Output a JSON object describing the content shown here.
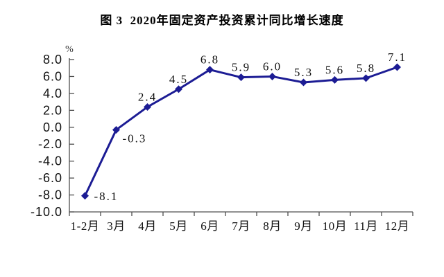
{
  "title": "图 3  2020年固定资产投资累计同比增长速度",
  "chart_data": {
    "type": "line",
    "title": "图 3  2020年固定资产投资累计同比增长速度",
    "categories": [
      "1-2月",
      "3月",
      "4月",
      "5月",
      "6月",
      "7月",
      "8月",
      "9月",
      "10月",
      "11月",
      "12月"
    ],
    "values": [
      -8.1,
      -0.3,
      2.4,
      4.5,
      6.8,
      5.9,
      6.0,
      5.3,
      5.6,
      5.8,
      7.1
    ],
    "data_labels": [
      "-8.1",
      "-0.3",
      "2.4",
      "4.5",
      "6.8",
      "5.9",
      "6.0",
      "5.3",
      "5.6",
      "5.8",
      "7.1"
    ],
    "ylabel": "%",
    "ylim": [
      -10.0,
      8.0
    ],
    "ytick_step": 2.0,
    "ytick_labels": [
      "8.0",
      "6.0",
      "4.0",
      "2.0",
      "0.0",
      "-2.0",
      "-4.0",
      "-6.0",
      "-8.0",
      "-10.0"
    ],
    "grid": false,
    "legend": "none",
    "marker": "diamond",
    "colors": {
      "line": "#1c1c94",
      "marker": "#1c1c94",
      "axis": "#4d4d4d",
      "text": "#111111",
      "background": "#ffffff"
    }
  }
}
